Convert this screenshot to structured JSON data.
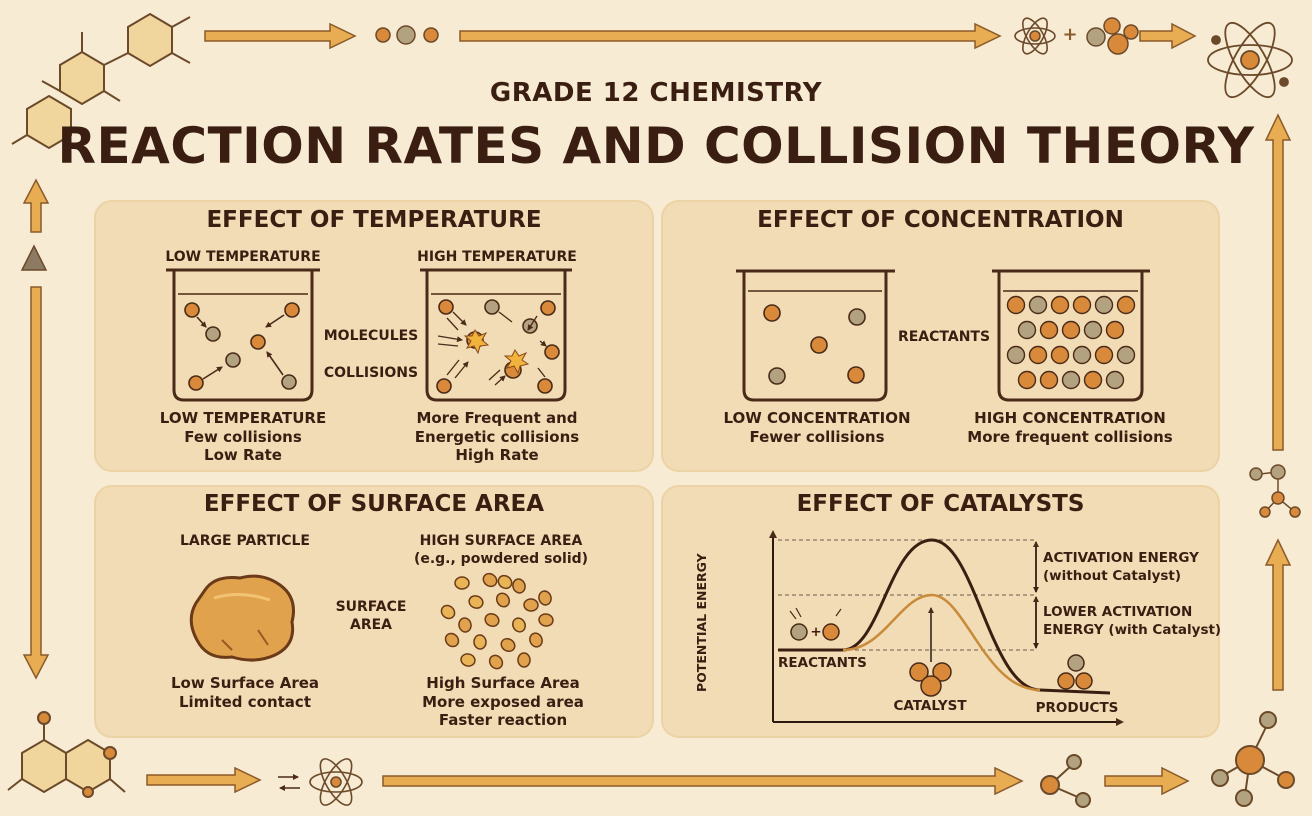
{
  "header": {
    "subtitle": "GRADE 12 CHEMISTRY",
    "title": "REACTION RATES AND COLLISION THEORY"
  },
  "temperature": {
    "heading": "EFFECT OF TEMPERATURE",
    "low_label": "LOW TEMPERATURE",
    "high_label": "HIGH TEMPERATURE",
    "legend_molecules": "MOLECULES",
    "legend_collisions": "COLLISIONS",
    "low_caption": [
      "LOW TEMPERATURE",
      "Few collisions",
      "Low Rate"
    ],
    "high_caption": [
      "More Frequent and",
      "Energetic collisions",
      "High Rate"
    ]
  },
  "concentration": {
    "heading": "EFFECT OF CONCENTRATION",
    "legend_reactants": "REACTANTS",
    "low_caption": [
      "LOW CONCENTRATION",
      "Fewer collisions"
    ],
    "high_caption": [
      "HIGH CONCENTRATION",
      "More frequent collisions"
    ]
  },
  "surface_area": {
    "heading": "EFFECT OF SURFACE AREA",
    "large_label": "LARGE PARTICLE",
    "high_label": [
      "HIGH SURFACE AREA",
      "(e.g., powdered solid)"
    ],
    "middle_label": [
      "SURFACE",
      "AREA"
    ],
    "low_caption": [
      "Low Surface Area",
      "Limited contact"
    ],
    "high_caption": [
      "High Surface Area",
      "More exposed area",
      "Faster reaction"
    ]
  },
  "catalysts": {
    "heading": "EFFECT OF CATALYSTS",
    "y_axis_label": "POTENTIAL ENERGY",
    "activation_label": [
      "ACTIVATION ENERGY",
      "(without Catalyst)"
    ],
    "lower_activation_label": [
      "LOWER ACTIVATION",
      "ENERGY (with Catalyst)"
    ],
    "reactants_label": "REACTANTS",
    "catalyst_label": "CATALYST",
    "products_label": "PRODUCTS",
    "plus_sign": "+"
  },
  "decor": {
    "plus_sign": "+",
    "colors": {
      "background": "#f7ebd4",
      "panel": "#f1dcb5",
      "accent": "#e6a84c",
      "particle_orange": "#d8893a",
      "particle_grey": "#b3a27f",
      "dark_text": "#3a1e12",
      "curve_catalyst": "#c98a3a"
    }
  }
}
